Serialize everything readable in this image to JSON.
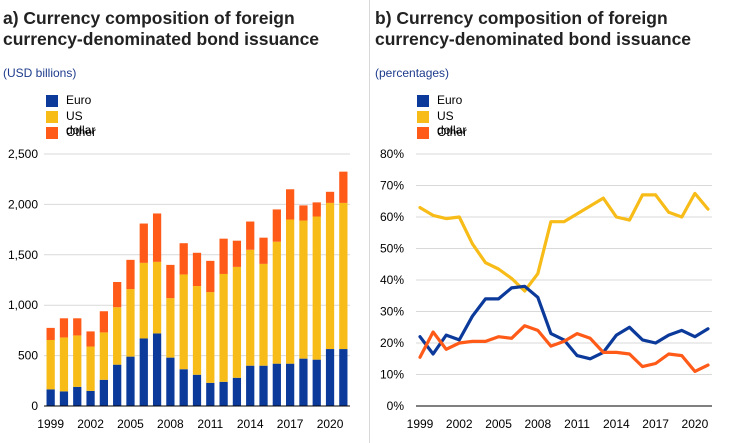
{
  "panel_a": {
    "title": "a) Currency composition of foreign currency-denominated bond issuance",
    "unit": "(USD billions)",
    "legend": [
      "Euro",
      "US dollar",
      "Other"
    ]
  },
  "panel_b": {
    "title": "b) Currency composition of foreign currency-denominated bond issuance",
    "unit": "(percentages)",
    "legend": [
      "Euro",
      "US dollar",
      "Other"
    ]
  },
  "colors": {
    "euro": "#0b3a9b",
    "usd": "#f7bc18",
    "other": "#ff5a17",
    "grid": "#d9d9d9"
  },
  "chart_data": [
    {
      "type": "bar",
      "stacked": true,
      "title": "a) Currency composition of foreign currency-denominated bond issuance",
      "ylabel": "(USD billions)",
      "x": [
        1999,
        2000,
        2001,
        2002,
        2003,
        2004,
        2005,
        2006,
        2007,
        2008,
        2009,
        2010,
        2011,
        2012,
        2013,
        2014,
        2015,
        2016,
        2017,
        2018,
        2019,
        2020,
        2021
      ],
      "xtick_labels": [
        "1999",
        "2002",
        "2005",
        "2008",
        "2011",
        "2014",
        "2017",
        "2020"
      ],
      "xtick_values": [
        1999,
        2002,
        2005,
        2008,
        2011,
        2014,
        2017,
        2020
      ],
      "ylim": [
        0,
        2500
      ],
      "ytick_values": [
        0,
        500,
        1000,
        1500,
        2000,
        2500
      ],
      "ytick_labels": [
        "0",
        "500",
        "1,000",
        "1,500",
        "2,000",
        "2,500"
      ],
      "series": [
        {
          "name": "Euro",
          "values": [
            165,
            145,
            190,
            150,
            260,
            410,
            490,
            670,
            720,
            480,
            365,
            310,
            230,
            240,
            280,
            400,
            400,
            420,
            420,
            470,
            460,
            565,
            565
          ]
        },
        {
          "name": "US dollar",
          "values": [
            490,
            535,
            510,
            440,
            470,
            570,
            670,
            750,
            710,
            590,
            940,
            880,
            900,
            1070,
            1100,
            1150,
            1010,
            1210,
            1430,
            1370,
            1420,
            1450,
            1450
          ]
        },
        {
          "name": "Other",
          "values": [
            120,
            190,
            170,
            150,
            210,
            250,
            290,
            390,
            480,
            330,
            310,
            330,
            310,
            350,
            260,
            280,
            260,
            320,
            300,
            150,
            140,
            110,
            310
          ]
        }
      ]
    },
    {
      "type": "line",
      "title": "b) Currency composition of foreign currency-denominated bond issuance",
      "ylabel": "(percentages)",
      "x": [
        1999,
        2000,
        2001,
        2002,
        2003,
        2004,
        2005,
        2006,
        2007,
        2008,
        2009,
        2010,
        2011,
        2012,
        2013,
        2014,
        2015,
        2016,
        2017,
        2018,
        2019,
        2020,
        2021
      ],
      "xtick_labels": [
        "1999",
        "2002",
        "2005",
        "2008",
        "2011",
        "2014",
        "2017",
        "2020"
      ],
      "xtick_values": [
        1999,
        2002,
        2005,
        2008,
        2011,
        2014,
        2017,
        2020
      ],
      "ylim": [
        0,
        80
      ],
      "ytick_values": [
        0,
        10,
        20,
        30,
        40,
        50,
        60,
        70,
        80
      ],
      "ytick_labels": [
        "0%",
        "10%",
        "20%",
        "30%",
        "40%",
        "50%",
        "60%",
        "70%",
        "80%"
      ],
      "series": [
        {
          "name": "Euro",
          "values": [
            22,
            16.5,
            22.5,
            21,
            28.5,
            34,
            34,
            37.5,
            38,
            34.5,
            23,
            21,
            16,
            15,
            17,
            22.5,
            25,
            21,
            20,
            22.5,
            24,
            22,
            24.5
          ]
        },
        {
          "name": "US dollar",
          "values": [
            63,
            60.5,
            59.5,
            60,
            51.5,
            45.5,
            43.5,
            40.5,
            36.5,
            42,
            58.5,
            58.5,
            61,
            63.5,
            66,
            60,
            59,
            67,
            67,
            61.5,
            60,
            67.5,
            62.5
          ]
        },
        {
          "name": "Other",
          "values": [
            15.5,
            23.5,
            18,
            20,
            20.5,
            20.5,
            22,
            21.5,
            25.5,
            24,
            19,
            20.5,
            23,
            21.5,
            17,
            17,
            16.5,
            12.5,
            13.5,
            16.5,
            16,
            11,
            13
          ]
        }
      ]
    }
  ]
}
